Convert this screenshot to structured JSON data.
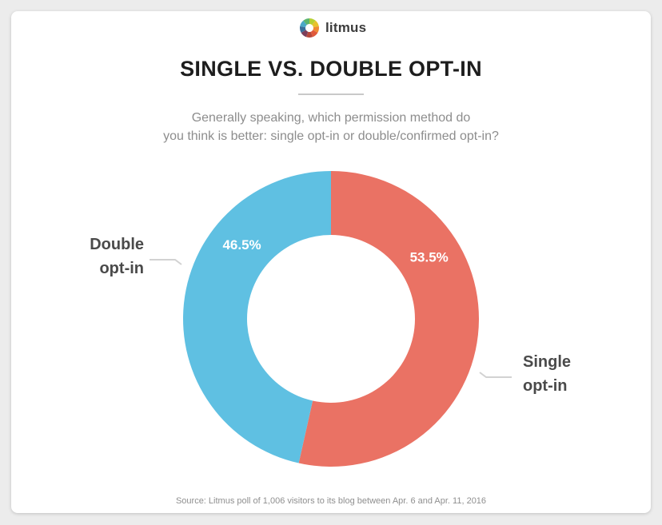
{
  "brand": {
    "name": "litmus",
    "logo_icon": "litmus-logo-icon",
    "logo_colors": [
      "#b6d033",
      "#e8c22c",
      "#ef8a33",
      "#e0593b",
      "#b8483b",
      "#7b3f5b",
      "#3a6e9a",
      "#4aa8c7",
      "#5bb56f"
    ]
  },
  "title": "SINGLE VS. DOUBLE OPT-IN",
  "subtitle_lines": [
    "Generally speaking, which permission method do",
    "you think is better: single opt-in or double/confirmed opt-in?"
  ],
  "chart_data": {
    "type": "pie",
    "title": "SINGLE VS. DOUBLE OPT-IN",
    "donut": true,
    "legend": "none",
    "slices": [
      {
        "name": "Single opt-in",
        "label_lines": [
          "Single",
          "opt-in"
        ],
        "value": 53.5,
        "value_label": "53.5%",
        "color": "#ea7264"
      },
      {
        "name": "Double opt-in",
        "label_lines": [
          "Double",
          "opt-in"
        ],
        "value": 46.5,
        "value_label": "46.5%",
        "color": "#5fc0e2"
      }
    ]
  },
  "source": "Source: Litmus poll of 1,006 visitors to its blog between Apr. 6 and Apr. 11, 2016"
}
